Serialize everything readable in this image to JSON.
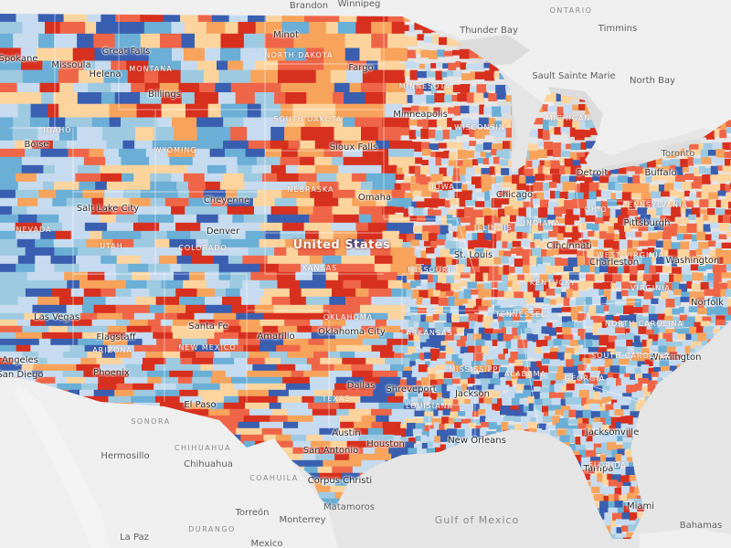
{
  "map": {
    "country_label": "United States",
    "water_labels": [
      "Gulf of Mexico"
    ],
    "neighbor_regions": [
      "ONTARIO",
      "SONORA",
      "CHIHUAHUA",
      "COAHUILA",
      "DURANGO"
    ],
    "state_labels": [
      "MONTANA",
      "NORTH DAKOTA",
      "SOUTH DAKOTA",
      "MINNESOTA",
      "MICHIGAN",
      "IDAHO",
      "WYOMING",
      "NEBRASKA",
      "IOWA",
      "NEVADA",
      "UTAH",
      "COLORADO",
      "KANSAS",
      "MISSOURI",
      "ILLINOIS",
      "INDIANA",
      "OHIO",
      "PENNSYLVANIA",
      "ARIZONA",
      "NEW MEXICO",
      "OKLAHOMA",
      "ARKANSAS",
      "TENNESSEE",
      "KENTUCKY",
      "VIRGINIA",
      "NORTH CAROLINA",
      "TEXAS",
      "LOUISIANA",
      "MISSISSIPPI",
      "ALABAMA",
      "GEORGIA",
      "FLORIDA",
      "SOUTH CAROLINA",
      "WISCONSIN",
      "WEST VIRGINIA"
    ],
    "cities_us": [
      "Spokane",
      "Missoula",
      "Great Falls",
      "Helena",
      "Billings",
      "Minot",
      "Fargo",
      "Boise",
      "Sioux Falls",
      "Minneapolis",
      "Cheyenne",
      "Salt Lake City",
      "Omaha",
      "Denver",
      "Chicago",
      "Detroit",
      "Buffalo",
      "Pittsburgh",
      "St. Louis",
      "Cincinnati",
      "Washington",
      "Charleston",
      "Norfolk",
      "Las Vegas",
      "Santa Fe",
      "Amarillo",
      "Oklahoma City",
      "Flagstaff",
      "Phoenix",
      "Los Angeles",
      "San Diego",
      "El Paso",
      "Dallas",
      "Shreveport",
      "Jackson",
      "Wilmington",
      "Jacksonville",
      "Austin",
      "Houston",
      "New Orleans",
      "San Antonio",
      "Corpus Christi",
      "Tampa",
      "Miami"
    ],
    "cities_other": [
      "Brandon",
      "Winnipeg",
      "Thunder Bay",
      "Timmins",
      "Sault Sainte Marie",
      "North Bay",
      "Toronto",
      "Hermosillo",
      "Chihuahua",
      "Torreón",
      "Monterrey",
      "Matamoros",
      "La Paz",
      "Mexico",
      "Bahamas"
    ],
    "palette": {
      "deep_red": "#d7301f",
      "red": "#ef6548",
      "orange": "#f7a35c",
      "yellow": "#fdd49e",
      "pale_blue": "#c6dbef",
      "light_blue": "#9ecae1",
      "blue": "#6baed6",
      "dark_blue": "#3a5fb0",
      "land": "#f2f2f2",
      "water": "#e4e4e4",
      "border": "#ffffff"
    }
  }
}
